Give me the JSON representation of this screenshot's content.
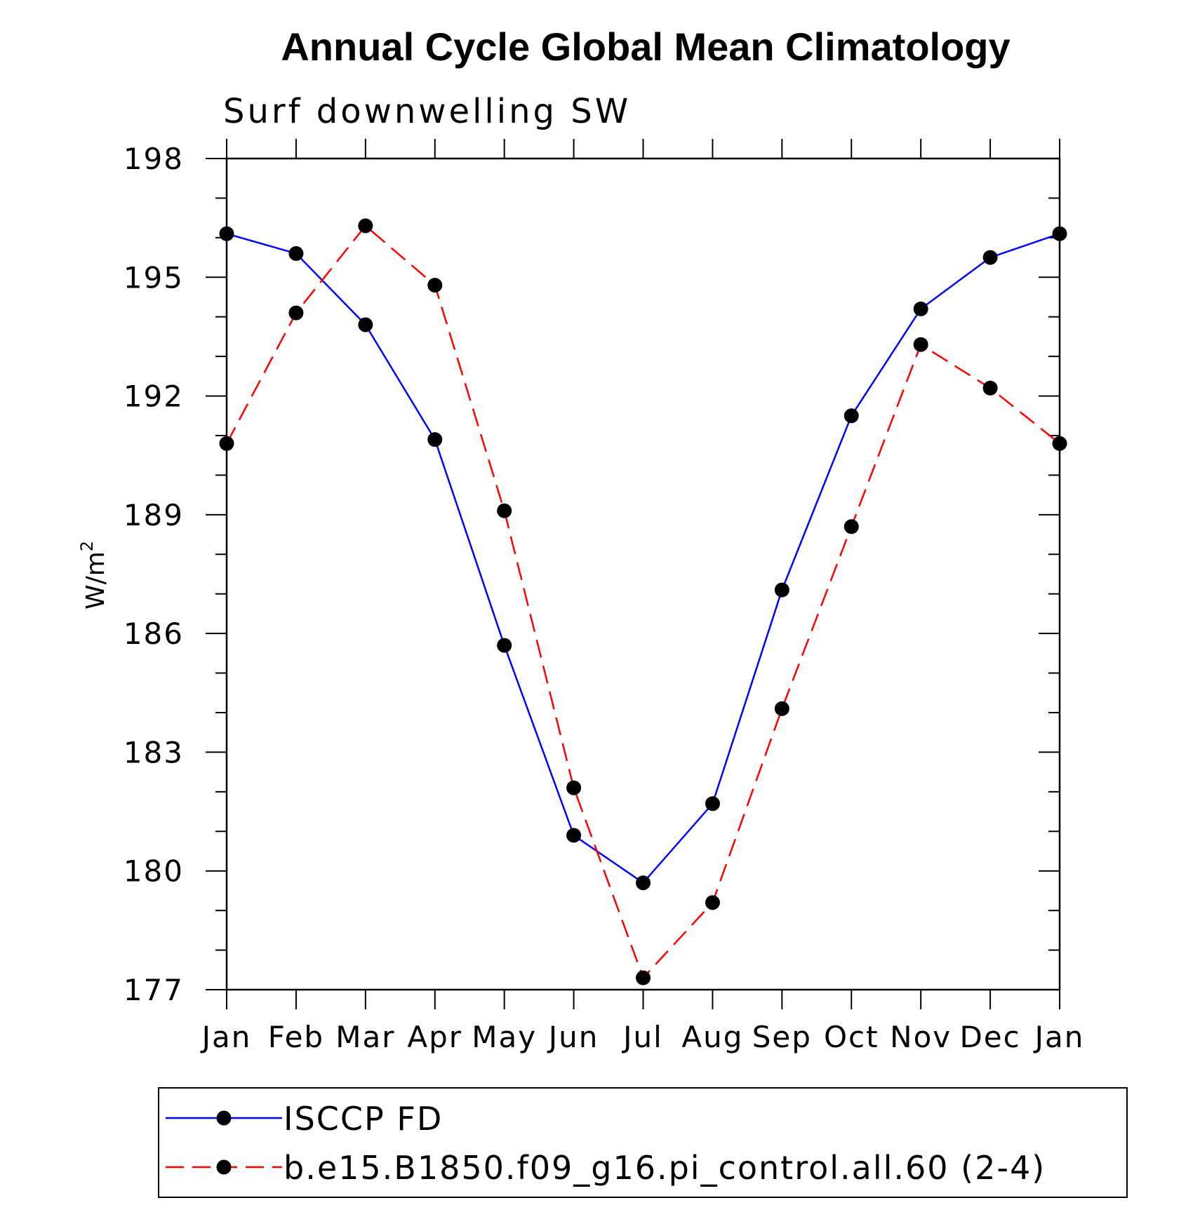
{
  "chart_data": {
    "type": "line",
    "title": "Annual Cycle Global Mean Climatology",
    "subtitle": "Surf downwelling SW",
    "xlabel": "",
    "ylabel": "W/m",
    "ylabel_superscript": "2",
    "ylim": [
      177,
      198
    ],
    "yticks": [
      177,
      180,
      183,
      186,
      189,
      192,
      195,
      198
    ],
    "categories": [
      "Jan",
      "Feb",
      "Mar",
      "Apr",
      "May",
      "Jun",
      "Jul",
      "Aug",
      "Sep",
      "Oct",
      "Nov",
      "Dec",
      "Jan"
    ],
    "grid": false,
    "legend_position": "bottom",
    "series": [
      {
        "name": "ISCCP FD",
        "color": "#0000ff",
        "dash": "solid",
        "values": [
          196.1,
          195.6,
          193.8,
          190.9,
          185.7,
          180.9,
          179.7,
          181.7,
          187.1,
          191.5,
          194.2,
          195.5,
          196.1
        ]
      },
      {
        "name": "b.e15.B1850.f09_g16.pi_control.all.60 (2-4)",
        "color": "#ff0000",
        "dash": "dashed",
        "values": [
          190.8,
          194.1,
          196.3,
          194.8,
          189.1,
          182.1,
          177.3,
          179.2,
          184.1,
          188.7,
          193.3,
          192.2,
          190.8
        ]
      }
    ]
  }
}
